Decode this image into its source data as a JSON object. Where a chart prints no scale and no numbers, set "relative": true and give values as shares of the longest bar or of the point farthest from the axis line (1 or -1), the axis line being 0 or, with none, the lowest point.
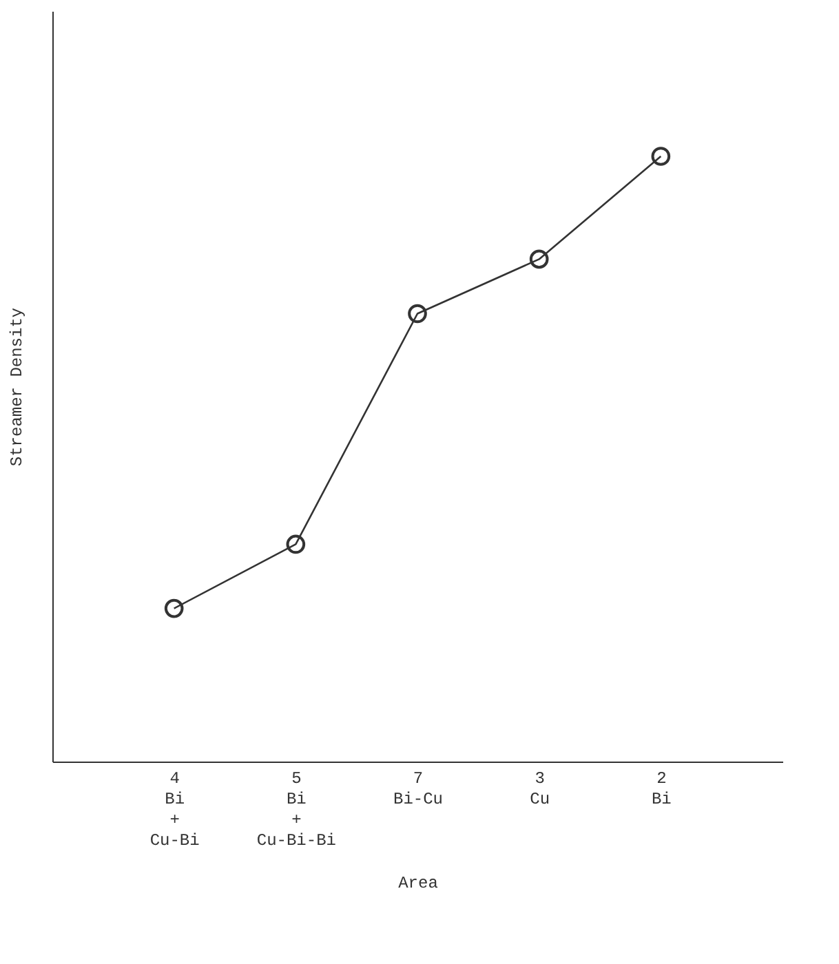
{
  "chart_data": {
    "type": "line",
    "xlabel": "Area",
    "ylabel": "Streamer Density",
    "categories": [
      "4\nBi\n+\nCu-Bi",
      "5\nBi\n+\nCu-Bi-Bi",
      "7\nBi-Cu",
      "3\nCu",
      "2\nBi"
    ],
    "relative": true,
    "series": [
      {
        "color": "#333333",
        "values": [
          0.253,
          0.359,
          0.74,
          0.83,
          1.0
        ]
      }
    ],
    "marker": "circle",
    "line_style": "solid",
    "grid": false
  }
}
